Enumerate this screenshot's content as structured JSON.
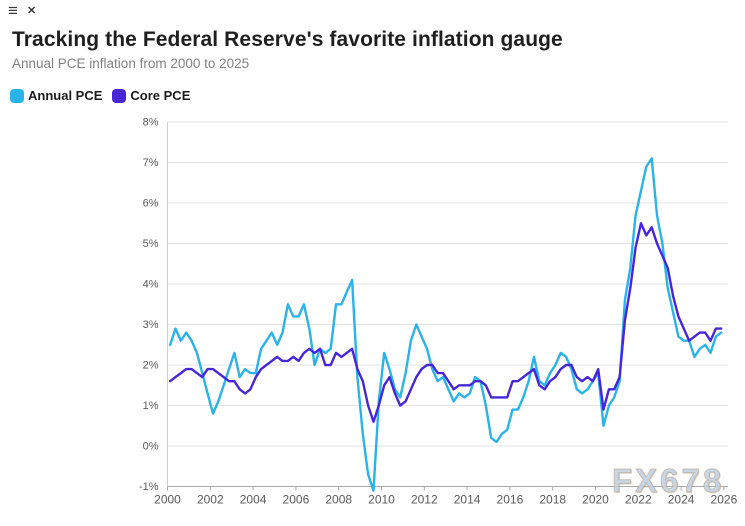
{
  "window": {
    "menu_glyph": "≡",
    "close_glyph": "✕"
  },
  "header": {
    "title": "Tracking the Federal Reserve's favorite inflation gauge",
    "subtitle": "Annual PCE inflation from 2000 to 2025"
  },
  "watermark": "FX678",
  "colors": {
    "annual_pce": "#29b3e8",
    "core_pce": "#4527d8",
    "gridline": "#e3e3e3",
    "left_axis": "#cfcfcf",
    "bottom_axis": "#a9a9a9",
    "axis_text": "#5a5a5a",
    "title_text": "#1f1f1f",
    "subtitle_text": "#828282"
  },
  "chart_data": {
    "type": "line",
    "title": "Tracking the Federal Reserve's favorite inflation gauge",
    "subtitle": "Annual PCE inflation from 2000 to 2025",
    "xlabel": "",
    "ylabel": "",
    "grid": true,
    "legend_position": "top-left",
    "xlim": [
      2000,
      2026.2
    ],
    "ylim": [
      -1,
      8
    ],
    "y_ticks": [
      {
        "value": 8,
        "label": "8%"
      },
      {
        "value": 7,
        "label": "7%"
      },
      {
        "value": 6,
        "label": "6%"
      },
      {
        "value": 5,
        "label": "5%"
      },
      {
        "value": 4,
        "label": "4%"
      },
      {
        "value": 3,
        "label": "3%"
      },
      {
        "value": 2,
        "label": "2%"
      },
      {
        "value": 1,
        "label": "1%"
      },
      {
        "value": 0,
        "label": "0%"
      },
      {
        "value": -1,
        "label": "-1%"
      }
    ],
    "x_ticks": [
      {
        "value": 2000,
        "label": "2000"
      },
      {
        "value": 2002,
        "label": "2002"
      },
      {
        "value": 2004,
        "label": "2004"
      },
      {
        "value": 2006,
        "label": "2006"
      },
      {
        "value": 2008,
        "label": "2008"
      },
      {
        "value": 2010,
        "label": "2010"
      },
      {
        "value": 2012,
        "label": "2012"
      },
      {
        "value": 2014,
        "label": "2014"
      },
      {
        "value": 2016,
        "label": "2016"
      },
      {
        "value": 2018,
        "label": "2018"
      },
      {
        "value": 2020,
        "label": "2020"
      },
      {
        "value": 2022,
        "label": "2022"
      },
      {
        "value": 2024,
        "label": "2024"
      },
      {
        "value": 2026,
        "label": "2026"
      }
    ],
    "x": [
      2000.125,
      2000.375,
      2000.625,
      2000.875,
      2001.125,
      2001.375,
      2001.625,
      2001.875,
      2002.125,
      2002.375,
      2002.625,
      2002.875,
      2003.125,
      2003.375,
      2003.625,
      2003.875,
      2004.125,
      2004.375,
      2004.625,
      2004.875,
      2005.125,
      2005.375,
      2005.625,
      2005.875,
      2006.125,
      2006.375,
      2006.625,
      2006.875,
      2007.125,
      2007.375,
      2007.625,
      2007.875,
      2008.125,
      2008.375,
      2008.625,
      2008.875,
      2009.125,
      2009.375,
      2009.625,
      2009.875,
      2010.125,
      2010.375,
      2010.625,
      2010.875,
      2011.125,
      2011.375,
      2011.625,
      2011.875,
      2012.125,
      2012.375,
      2012.625,
      2012.875,
      2013.125,
      2013.375,
      2013.625,
      2013.875,
      2014.125,
      2014.375,
      2014.625,
      2014.875,
      2015.125,
      2015.375,
      2015.625,
      2015.875,
      2016.125,
      2016.375,
      2016.625,
      2016.875,
      2017.125,
      2017.375,
      2017.625,
      2017.875,
      2018.125,
      2018.375,
      2018.625,
      2018.875,
      2019.125,
      2019.375,
      2019.625,
      2019.875,
      2020.125,
      2020.375,
      2020.625,
      2020.875,
      2021.125,
      2021.375,
      2021.625,
      2021.875,
      2022.125,
      2022.375,
      2022.625,
      2022.875,
      2023.125,
      2023.375,
      2023.625,
      2023.875,
      2024.125,
      2024.375,
      2024.625,
      2024.875,
      2025.125,
      2025.375,
      2025.625,
      2025.875
    ],
    "series": [
      {
        "name": "Annual PCE",
        "color": "#29b3e8",
        "values": [
          2.5,
          2.9,
          2.6,
          2.8,
          2.6,
          2.3,
          1.8,
          1.3,
          0.8,
          1.1,
          1.5,
          1.9,
          2.3,
          1.7,
          1.9,
          1.8,
          1.8,
          2.4,
          2.6,
          2.8,
          2.5,
          2.8,
          3.5,
          3.2,
          3.2,
          3.5,
          2.9,
          2.0,
          2.4,
          2.3,
          2.4,
          3.5,
          3.5,
          3.8,
          4.1,
          1.7,
          0.3,
          -0.7,
          -1.1,
          1.1,
          2.3,
          1.9,
          1.4,
          1.2,
          1.8,
          2.6,
          3.0,
          2.7,
          2.4,
          1.9,
          1.6,
          1.7,
          1.4,
          1.1,
          1.3,
          1.2,
          1.3,
          1.7,
          1.6,
          1.0,
          0.2,
          0.1,
          0.3,
          0.4,
          0.9,
          0.9,
          1.2,
          1.6,
          2.2,
          1.6,
          1.5,
          1.8,
          2.0,
          2.3,
          2.2,
          1.9,
          1.4,
          1.3,
          1.4,
          1.6,
          1.8,
          0.5,
          1.0,
          1.2,
          1.6,
          3.6,
          4.4,
          5.7,
          6.3,
          6.9,
          7.1,
          5.7,
          5.0,
          3.9,
          3.3,
          2.7,
          2.6,
          2.6,
          2.2,
          2.4,
          2.5,
          2.3,
          2.7,
          2.8
        ]
      },
      {
        "name": "Core PCE",
        "color": "#4527d8",
        "values": [
          1.6,
          1.7,
          1.8,
          1.9,
          1.9,
          1.8,
          1.7,
          1.9,
          1.9,
          1.8,
          1.7,
          1.6,
          1.6,
          1.4,
          1.3,
          1.4,
          1.7,
          1.9,
          2.0,
          2.1,
          2.2,
          2.1,
          2.1,
          2.2,
          2.1,
          2.3,
          2.4,
          2.3,
          2.4,
          2.0,
          2.0,
          2.3,
          2.2,
          2.3,
          2.4,
          1.9,
          1.6,
          1.0,
          0.6,
          1.0,
          1.5,
          1.7,
          1.3,
          1.0,
          1.1,
          1.4,
          1.7,
          1.9,
          2.0,
          2.0,
          1.8,
          1.8,
          1.6,
          1.4,
          1.5,
          1.5,
          1.5,
          1.6,
          1.6,
          1.5,
          1.2,
          1.2,
          1.2,
          1.2,
          1.6,
          1.6,
          1.7,
          1.8,
          1.9,
          1.5,
          1.4,
          1.6,
          1.7,
          1.9,
          2.0,
          2.0,
          1.7,
          1.6,
          1.7,
          1.6,
          1.9,
          0.9,
          1.4,
          1.4,
          1.7,
          3.1,
          3.9,
          4.9,
          5.5,
          5.2,
          5.4,
          5.0,
          4.7,
          4.4,
          3.7,
          3.2,
          2.9,
          2.6,
          2.7,
          2.8,
          2.8,
          2.6,
          2.9,
          2.9
        ]
      }
    ]
  }
}
